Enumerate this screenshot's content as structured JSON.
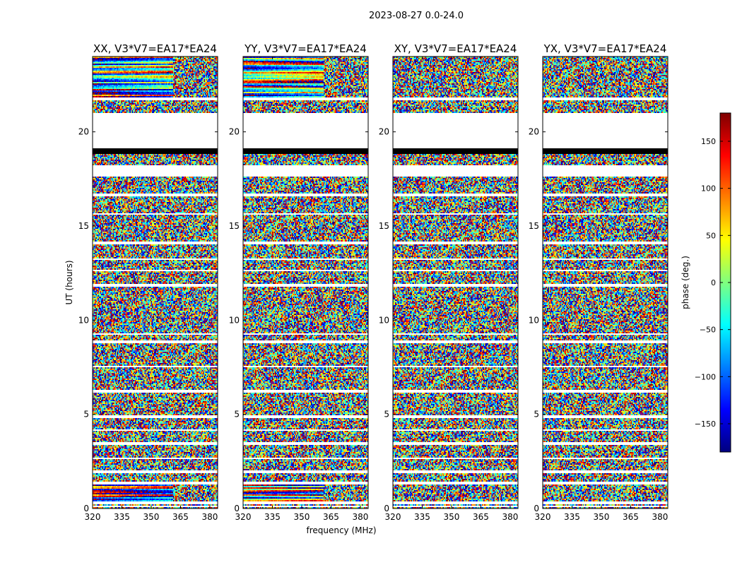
{
  "figure": {
    "suptitle": "2023-08-27 0.0-24.0",
    "xlabel": "frequency (MHz)",
    "ylabel": "UT (hours)"
  },
  "colorbar": {
    "label": "phase (deg.)",
    "ticks": [
      150,
      100,
      50,
      0,
      -50,
      -100,
      -150
    ],
    "tick_labels": [
      "150",
      "100",
      "50",
      "0",
      "−50",
      "−100",
      "−150"
    ],
    "range": [
      -180,
      180
    ],
    "colormap": "jet",
    "stops": [
      "#00007f",
      "#0000ff",
      "#007fff",
      "#00ffff",
      "#7fff7f",
      "#ffff00",
      "#ff7f00",
      "#ff0000",
      "#7f0000"
    ]
  },
  "chart_data": [
    {
      "type": "heatmap",
      "title": "XX, V3*V7=EA17*EA24",
      "x_ticks": [
        320,
        335,
        350,
        365,
        380
      ],
      "y_ticks": [
        0,
        5,
        10,
        15,
        20
      ],
      "xlim": [
        320,
        384
      ],
      "ylim": [
        0,
        24
      ],
      "coherent_bands": [
        [
          0.35,
          1.3
        ],
        [
          21.8,
          24
        ]
      ],
      "noise_level": 1.0
    },
    {
      "type": "heatmap",
      "title": "YY, V3*V7=EA17*EA24",
      "x_ticks": [
        320,
        335,
        350,
        365,
        380
      ],
      "y_ticks": [
        0,
        5,
        10,
        15,
        20
      ],
      "xlim": [
        320,
        384
      ],
      "ylim": [
        0,
        24
      ],
      "coherent_bands": [
        [
          0.4,
          1.3
        ],
        [
          21.8,
          24
        ]
      ],
      "noise_level": 1.0
    },
    {
      "type": "heatmap",
      "title": "XY, V3*V7=EA17*EA24",
      "x_ticks": [
        320,
        335,
        350,
        365,
        380
      ],
      "y_ticks": [
        0,
        5,
        10,
        15,
        20
      ],
      "xlim": [
        320,
        384
      ],
      "ylim": [
        0,
        24
      ],
      "coherent_bands": [],
      "noise_level": 1.0
    },
    {
      "type": "heatmap",
      "title": "YX, V3*V7=EA17*EA24",
      "x_ticks": [
        320,
        335,
        350,
        365,
        380
      ],
      "y_ticks": [
        0,
        5,
        10,
        15,
        20
      ],
      "xlim": [
        320,
        384
      ],
      "ylim": [
        0,
        24
      ],
      "coherent_bands": [],
      "noise_level": 1.0
    }
  ],
  "flagged_gaps_hours": [
    [
      17.6,
      18.2
    ],
    [
      19.0,
      21.0
    ],
    [
      21.65,
      21.85
    ],
    [
      20.05,
      20.35
    ],
    [
      14.05,
      14.2
    ],
    [
      8.75,
      8.95
    ],
    [
      6.15,
      6.3
    ],
    [
      4.8,
      4.95
    ],
    [
      3.4,
      3.55
    ],
    [
      1.9,
      2.0
    ],
    [
      0.25,
      0.35
    ],
    [
      0.05,
      0.12
    ],
    [
      12.6,
      12.7
    ],
    [
      11.8,
      11.9
    ],
    [
      15.6,
      15.7
    ],
    [
      16.6,
      16.7
    ],
    [
      7.5,
      7.6
    ],
    [
      9.2,
      9.3
    ],
    [
      13.2,
      13.3
    ],
    [
      2.6,
      2.7
    ],
    [
      1.3,
      1.4
    ],
    [
      4.1,
      4.2
    ]
  ],
  "solid_bars_hours": [
    [
      18.85,
      19.15
    ]
  ]
}
